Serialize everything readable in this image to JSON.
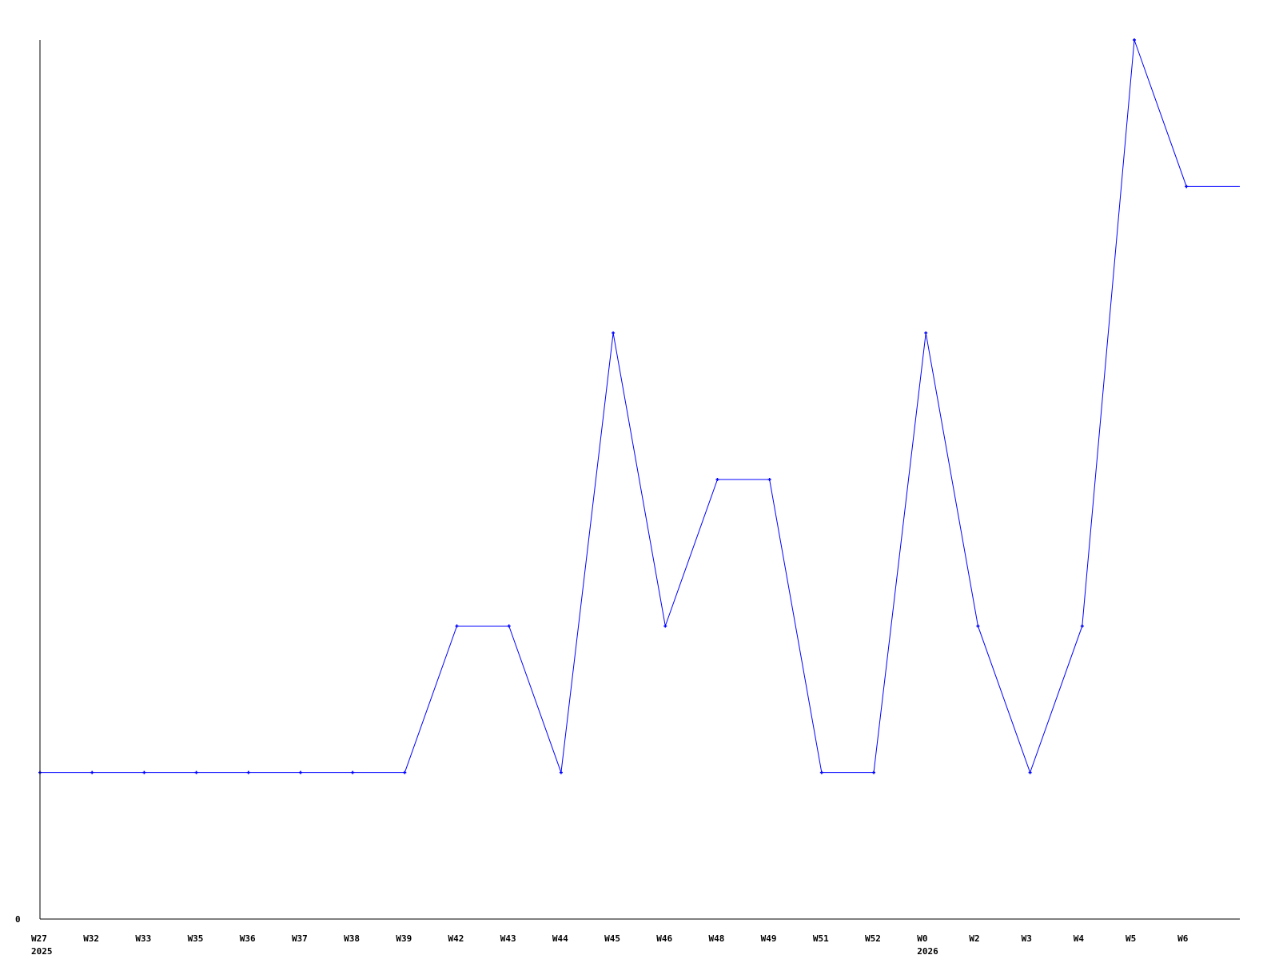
{
  "chart_data": {
    "type": "line",
    "title": "",
    "xlabel": "",
    "ylabel": "",
    "categories": [
      "W27",
      "W32",
      "W33",
      "W35",
      "W36",
      "W37",
      "W38",
      "W39",
      "W42",
      "W43",
      "W44",
      "W45",
      "W46",
      "W48",
      "W49",
      "W51",
      "W52",
      "W0",
      "W2",
      "W3",
      "W4",
      "W5",
      "W6"
    ],
    "year_labels": [
      {
        "at": "W27",
        "label": "2025"
      },
      {
        "at": "W0",
        "label": "2026"
      }
    ],
    "series": [
      {
        "values": [
          1,
          1,
          1,
          1,
          1,
          1,
          1,
          1,
          2,
          2,
          1,
          4,
          2,
          3,
          3,
          1,
          1,
          4,
          2,
          1,
          2,
          6,
          5
        ],
        "color": "#0000ff",
        "extends_to_right_edge": true
      }
    ],
    "ylim": [
      0,
      6
    ],
    "y_tick_labels": [
      "0"
    ],
    "grid": false,
    "axis_color": "#000000"
  }
}
